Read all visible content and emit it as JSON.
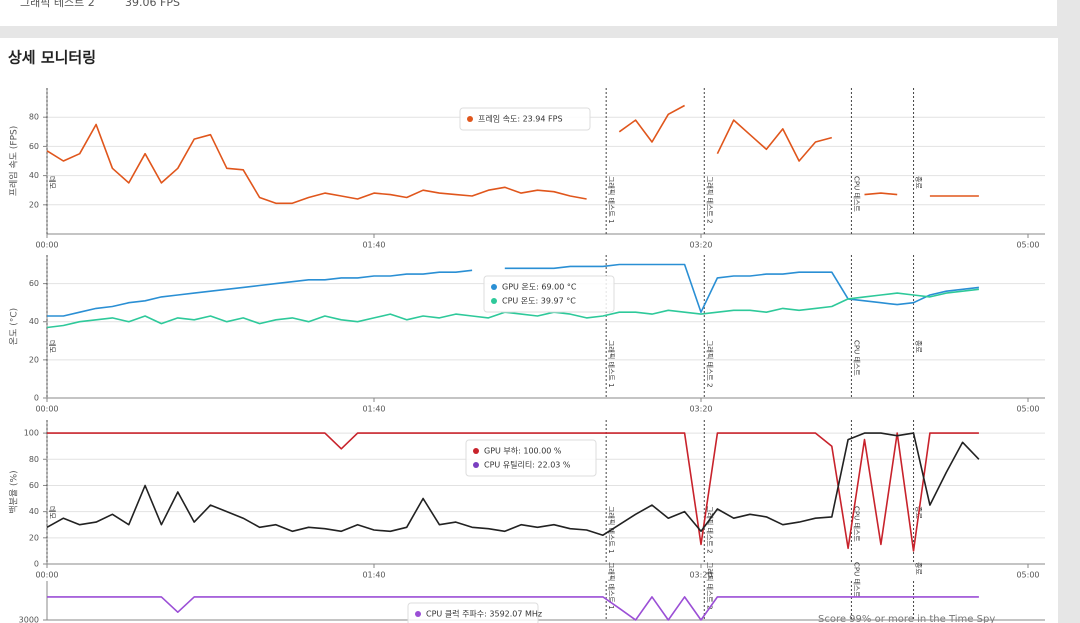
{
  "summary": {
    "label": "그래픽 테스트 2",
    "value": "39.06 FPS"
  },
  "section_title": "상세 모니터링",
  "footer_text": "Score 99% or more in the Time Spy",
  "chart_data": [
    {
      "type": "line",
      "ylabel": "프레임 속도 (FPS)",
      "x": [
        0,
        5,
        10,
        15,
        20,
        25,
        30,
        35,
        40,
        45,
        50,
        55,
        60,
        65,
        70,
        75,
        80,
        85,
        90,
        95,
        100,
        105,
        110,
        115,
        120,
        125,
        130,
        135,
        140,
        145,
        150,
        155,
        160,
        165,
        170,
        175,
        180,
        185,
        190,
        195,
        200,
        205,
        210,
        215,
        220,
        225,
        230,
        235,
        240,
        245,
        250,
        255,
        260,
        265,
        270,
        275,
        280,
        285
      ],
      "xlim": [
        0,
        300
      ],
      "xticks": [
        {
          "value": 0,
          "label": "00:00"
        },
        {
          "value": 100,
          "label": "01:40"
        },
        {
          "value": 200,
          "label": "03:20"
        },
        {
          "value": 300,
          "label": "05:00"
        }
      ],
      "ylim": [
        0,
        100
      ],
      "yticks": [
        20,
        40,
        60,
        80
      ],
      "grid": true,
      "series": [
        {
          "name": "프레임 속도",
          "color": "#e0561c",
          "values": [
            57,
            50,
            55,
            75,
            45,
            35,
            55,
            35,
            45,
            65,
            68,
            45,
            44,
            25,
            21,
            21,
            25,
            28,
            26,
            24,
            28,
            27,
            25,
            30,
            28,
            27,
            26,
            30,
            32,
            28,
            30,
            29,
            26,
            24,
            null,
            70,
            78,
            63,
            82,
            88,
            null,
            55,
            78,
            68,
            58,
            72,
            50,
            63,
            66,
            null,
            27,
            28,
            27,
            null,
            26,
            26,
            26,
            26
          ]
        }
      ],
      "annotations": [
        {
          "x": 0,
          "label": "데모"
        },
        {
          "x": 171,
          "label": "그래픽 테스트 1"
        },
        {
          "x": 201,
          "label": "그래픽 테스트 2"
        },
        {
          "x": 246,
          "label": "CPU 테스트"
        },
        {
          "x": 265,
          "label": "종료"
        }
      ],
      "tooltip": [
        {
          "text": "프레임 속도: 23.94 FPS",
          "color": "#e0561c"
        }
      ]
    },
    {
      "type": "line",
      "ylabel": "온도 (°C)",
      "x": [
        0,
        5,
        10,
        15,
        20,
        25,
        30,
        35,
        40,
        45,
        50,
        55,
        60,
        65,
        70,
        75,
        80,
        85,
        90,
        95,
        100,
        105,
        110,
        115,
        120,
        125,
        130,
        135,
        140,
        145,
        150,
        155,
        160,
        165,
        170,
        175,
        180,
        185,
        190,
        195,
        200,
        205,
        210,
        215,
        220,
        225,
        230,
        235,
        240,
        245,
        250,
        255,
        260,
        265,
        270,
        275,
        280,
        285
      ],
      "xlim": [
        0,
        300
      ],
      "xticks": [
        {
          "value": 0,
          "label": "00:00"
        },
        {
          "value": 100,
          "label": "01:40"
        },
        {
          "value": 200,
          "label": "03:20"
        },
        {
          "value": 300,
          "label": "05:00"
        }
      ],
      "ylim": [
        0,
        75
      ],
      "yticks": [
        0,
        20,
        40,
        60
      ],
      "grid": true,
      "series": [
        {
          "name": "GPU 온도",
          "color": "#2a8fd4",
          "values": [
            43,
            43,
            45,
            47,
            48,
            50,
            51,
            53,
            54,
            55,
            56,
            57,
            58,
            59,
            60,
            61,
            62,
            62,
            63,
            63,
            64,
            64,
            65,
            65,
            66,
            66,
            67,
            null,
            68,
            68,
            68,
            68,
            69,
            69,
            69,
            70,
            70,
            70,
            70,
            70,
            45,
            63,
            64,
            64,
            65,
            65,
            66,
            66,
            66,
            52,
            51,
            50,
            49,
            50,
            54,
            56,
            57,
            58
          ]
        },
        {
          "name": "CPU 온도",
          "color": "#2ec99a",
          "values": [
            37,
            38,
            40,
            41,
            42,
            40,
            43,
            39,
            42,
            41,
            43,
            40,
            42,
            39,
            41,
            42,
            40,
            43,
            41,
            40,
            42,
            44,
            41,
            43,
            42,
            44,
            43,
            42,
            45,
            44,
            43,
            45,
            44,
            42,
            43,
            45,
            45,
            44,
            46,
            45,
            44,
            45,
            46,
            46,
            45,
            47,
            46,
            47,
            48,
            52,
            53,
            54,
            55,
            54,
            53,
            55,
            56,
            57
          ]
        }
      ],
      "annotations": [
        {
          "x": 0,
          "label": "데모"
        },
        {
          "x": 171,
          "label": "그래픽 테스트 1"
        },
        {
          "x": 201,
          "label": "그래픽 테스트 2"
        },
        {
          "x": 246,
          "label": "CPU 테스트"
        },
        {
          "x": 265,
          "label": "종료"
        }
      ],
      "tooltip": [
        {
          "text": "GPU 온도: 69.00 °C",
          "color": "#2a8fd4"
        },
        {
          "text": "CPU 온도: 39.97 °C",
          "color": "#2ec99a"
        }
      ]
    },
    {
      "type": "line",
      "ylabel": "백분율 (%)",
      "x": [
        0,
        5,
        10,
        15,
        20,
        25,
        30,
        35,
        40,
        45,
        50,
        55,
        60,
        65,
        70,
        75,
        80,
        85,
        90,
        95,
        100,
        105,
        110,
        115,
        120,
        125,
        130,
        135,
        140,
        145,
        150,
        155,
        160,
        165,
        170,
        175,
        180,
        185,
        190,
        195,
        200,
        205,
        210,
        215,
        220,
        225,
        230,
        235,
        240,
        245,
        250,
        255,
        260,
        265,
        270,
        275,
        280,
        285
      ],
      "xlim": [
        0,
        300
      ],
      "xticks": [
        {
          "value": 0,
          "label": "00:00"
        },
        {
          "value": 100,
          "label": "01:40"
        },
        {
          "value": 200,
          "label": "03:20"
        },
        {
          "value": 300,
          "label": "05:00"
        }
      ],
      "ylim": [
        0,
        110
      ],
      "yticks": [
        0,
        20,
        40,
        60,
        80,
        100
      ],
      "grid": true,
      "series": [
        {
          "name": "GPU 부하",
          "color": "#c8232c",
          "values": [
            100,
            100,
            100,
            100,
            100,
            100,
            100,
            100,
            100,
            100,
            100,
            100,
            100,
            100,
            100,
            100,
            100,
            100,
            88,
            100,
            100,
            100,
            100,
            100,
            100,
            100,
            100,
            100,
            100,
            100,
            100,
            100,
            100,
            100,
            100,
            100,
            100,
            100,
            100,
            100,
            15,
            100,
            100,
            100,
            100,
            100,
            100,
            100,
            90,
            12,
            95,
            15,
            100,
            10,
            100,
            100,
            100,
            100
          ]
        },
        {
          "name": "CPU 유틸리티",
          "color": "#222222",
          "values": [
            28,
            35,
            30,
            32,
            38,
            30,
            60,
            30,
            55,
            32,
            45,
            40,
            35,
            28,
            30,
            25,
            28,
            27,
            25,
            30,
            26,
            25,
            28,
            50,
            30,
            32,
            28,
            27,
            25,
            30,
            28,
            30,
            27,
            26,
            22,
            30,
            38,
            45,
            35,
            40,
            25,
            42,
            35,
            38,
            36,
            30,
            32,
            35,
            36,
            95,
            100,
            100,
            98,
            100,
            45,
            70,
            93,
            80
          ]
        }
      ],
      "annotations": [
        {
          "x": 0,
          "label": "데모"
        },
        {
          "x": 171,
          "label": "그래픽 테스트 1"
        },
        {
          "x": 201,
          "label": "그래픽 테스트 2"
        },
        {
          "x": 246,
          "label": "CPU 테스트"
        },
        {
          "x": 265,
          "label": "종료"
        }
      ],
      "tooltip": [
        {
          "text": "GPU 부하: 100.00 %",
          "color": "#c8232c"
        },
        {
          "text": "CPU 유틸리티: 22.03 %",
          "color": "#7a3fc0"
        }
      ]
    },
    {
      "type": "line",
      "x": [
        0,
        5,
        10,
        15,
        20,
        25,
        30,
        35,
        40,
        45,
        50,
        55,
        60,
        65,
        70,
        75,
        80,
        85,
        90,
        95,
        100,
        105,
        110,
        115,
        120,
        125,
        130,
        135,
        140,
        145,
        150,
        155,
        160,
        165,
        170,
        175,
        180,
        185,
        190,
        195,
        200,
        205,
        210,
        215,
        220,
        225,
        230,
        235,
        240,
        245,
        250,
        255,
        260,
        265,
        270,
        275,
        280,
        285
      ],
      "xlim": [
        0,
        300
      ],
      "ylim": [
        3000,
        4000
      ],
      "yticks": [
        3000
      ],
      "grid": true,
      "series": [
        {
          "name": "CPU 클럭 주파수",
          "color": "#9b4fd6",
          "values": [
            3592,
            3592,
            3592,
            3592,
            3592,
            3592,
            3592,
            3592,
            3200,
            3592,
            3592,
            3592,
            3592,
            3592,
            3592,
            3592,
            3592,
            3592,
            3592,
            3592,
            3592,
            3592,
            3592,
            3592,
            3592,
            3592,
            3592,
            3592,
            3592,
            3592,
            3592,
            3592,
            3592,
            3592,
            3592,
            3300,
            3000,
            3592,
            3000,
            3592,
            3000,
            3592,
            3592,
            3592,
            3592,
            3592,
            3592,
            3592,
            3592,
            3592,
            3592,
            3592,
            3592,
            3592,
            3592,
            3592,
            3592,
            3592
          ]
        }
      ],
      "annotations": [
        {
          "x": 171,
          "label": "그래픽 테스트 1"
        },
        {
          "x": 201,
          "label": "그래픽 테스트 2"
        },
        {
          "x": 246,
          "label": "CPU 테스트"
        },
        {
          "x": 265,
          "label": "종료"
        }
      ],
      "tooltip": [
        {
          "text": "CPU 클럭 주파수: 3592.07 MHz",
          "color": "#9b4fd6"
        }
      ]
    }
  ]
}
